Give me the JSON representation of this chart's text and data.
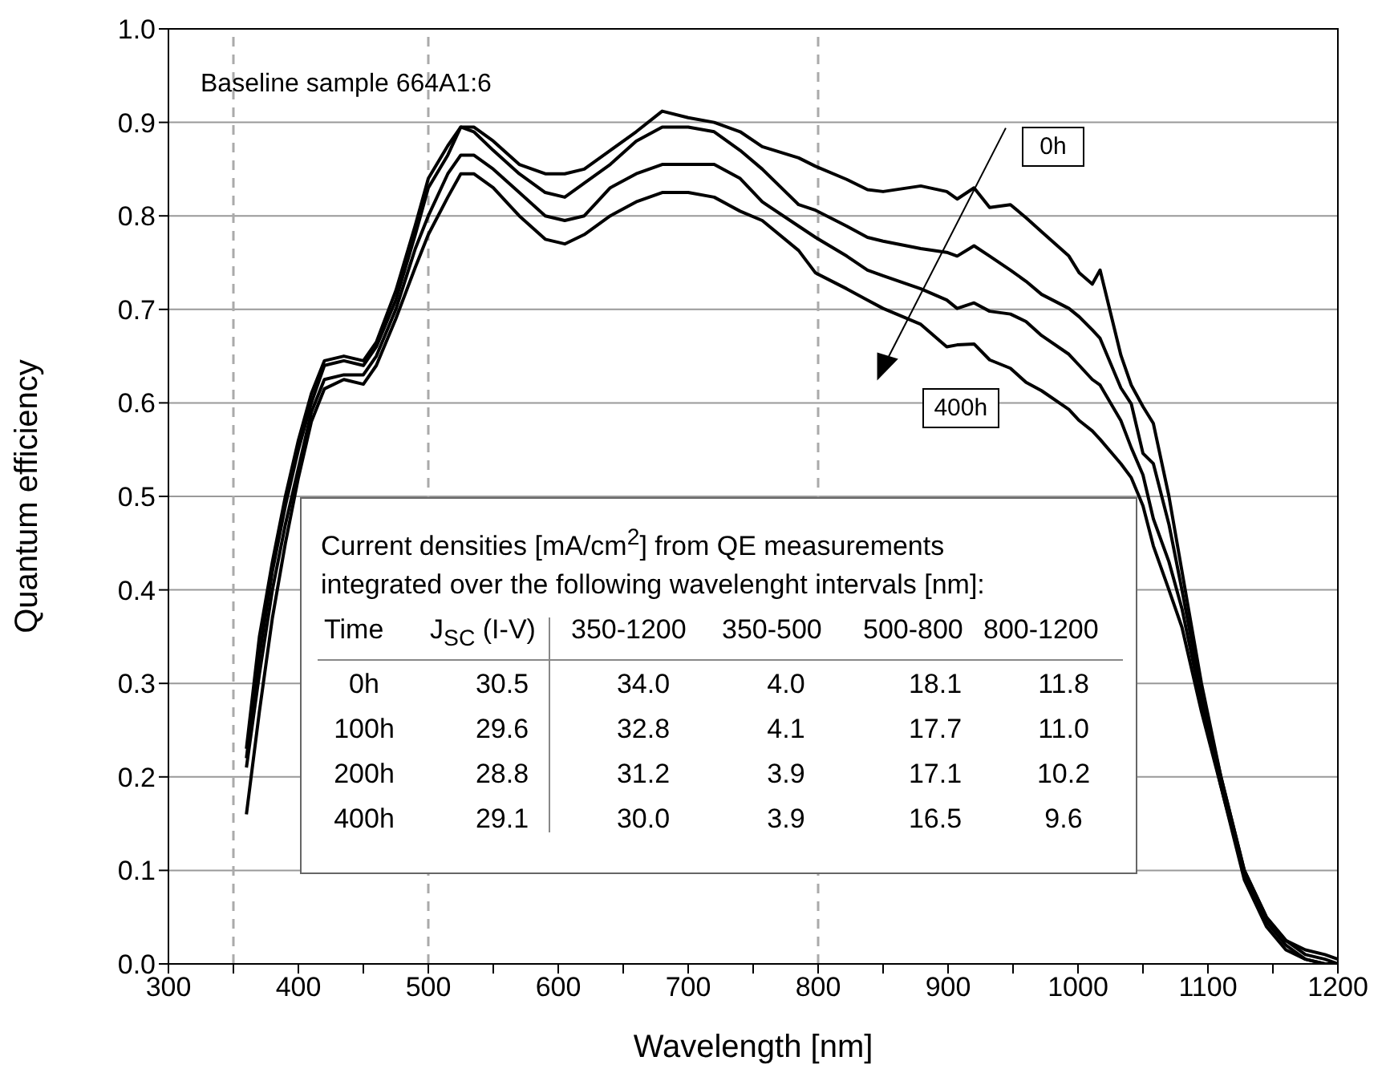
{
  "chart_data": {
    "type": "line",
    "xlabel": "Wavelength [nm]",
    "ylabel": "Quantum efficiency",
    "x": [
      360,
      370,
      380,
      390,
      400,
      410,
      420,
      435,
      450,
      460,
      475,
      490,
      500,
      515,
      525,
      535,
      550,
      570,
      590,
      605,
      620,
      640,
      660,
      680,
      700,
      720,
      740,
      757,
      785,
      798,
      822,
      838,
      850,
      879,
      899,
      907,
      920,
      932,
      948,
      960,
      972,
      993,
      1001,
      1011,
      1017,
      1033,
      1041,
      1050,
      1058,
      1070,
      1080,
      1095,
      1110,
      1128,
      1145,
      1160,
      1175,
      1190,
      1200
    ],
    "series": [
      {
        "color": "#000000",
        "values": [
          0.23,
          0.35,
          0.43,
          0.5,
          0.56,
          0.61,
          0.645,
          0.65,
          0.645,
          0.665,
          0.72,
          0.79,
          0.84,
          0.875,
          0.895,
          0.895,
          0.88,
          0.855,
          0.845,
          0.845,
          0.85,
          0.87,
          0.89,
          0.912,
          0.905,
          0.9,
          0.89,
          0.874,
          0.862,
          0.853,
          0.839,
          0.828,
          0.826,
          0.832,
          0.826,
          0.818,
          0.83,
          0.809,
          0.812,
          0.798,
          0.783,
          0.757,
          0.739,
          0.727,
          0.742,
          0.651,
          0.619,
          0.596,
          0.578,
          0.5,
          0.42,
          0.3,
          0.2,
          0.1,
          0.05,
          0.025,
          0.015,
          0.01,
          0.005
        ]
      },
      {
        "color": "#000000",
        "values": [
          0.22,
          0.33,
          0.42,
          0.49,
          0.55,
          0.6,
          0.64,
          0.645,
          0.64,
          0.66,
          0.71,
          0.78,
          0.83,
          0.865,
          0.895,
          0.89,
          0.87,
          0.845,
          0.825,
          0.82,
          0.835,
          0.855,
          0.88,
          0.895,
          0.895,
          0.89,
          0.87,
          0.85,
          0.812,
          0.806,
          0.789,
          0.777,
          0.773,
          0.765,
          0.761,
          0.757,
          0.768,
          0.757,
          0.742,
          0.73,
          0.716,
          0.701,
          0.692,
          0.678,
          0.669,
          0.616,
          0.599,
          0.546,
          0.535,
          0.47,
          0.4,
          0.29,
          0.2,
          0.1,
          0.05,
          0.025,
          0.01,
          0.005,
          0
        ]
      },
      {
        "color": "#000000",
        "values": [
          0.21,
          0.31,
          0.4,
          0.47,
          0.53,
          0.59,
          0.625,
          0.63,
          0.63,
          0.65,
          0.7,
          0.765,
          0.8,
          0.845,
          0.865,
          0.865,
          0.85,
          0.825,
          0.8,
          0.795,
          0.8,
          0.83,
          0.845,
          0.855,
          0.855,
          0.855,
          0.84,
          0.815,
          0.789,
          0.777,
          0.757,
          0.742,
          0.736,
          0.722,
          0.71,
          0.701,
          0.707,
          0.698,
          0.695,
          0.687,
          0.672,
          0.652,
          0.64,
          0.625,
          0.619,
          0.581,
          0.552,
          0.523,
          0.476,
          0.43,
          0.38,
          0.28,
          0.19,
          0.095,
          0.045,
          0.02,
          0.005,
          0,
          0
        ]
      },
      {
        "color": "#000000",
        "values": [
          0.16,
          0.27,
          0.37,
          0.45,
          0.52,
          0.58,
          0.615,
          0.625,
          0.62,
          0.64,
          0.69,
          0.745,
          0.78,
          0.82,
          0.845,
          0.845,
          0.83,
          0.8,
          0.775,
          0.77,
          0.78,
          0.8,
          0.815,
          0.825,
          0.825,
          0.82,
          0.805,
          0.795,
          0.763,
          0.739,
          0.722,
          0.71,
          0.701,
          0.684,
          0.66,
          0.662,
          0.663,
          0.646,
          0.637,
          0.622,
          0.613,
          0.593,
          0.581,
          0.57,
          0.561,
          0.535,
          0.52,
          0.49,
          0.447,
          0.4,
          0.36,
          0.27,
          0.19,
          0.09,
          0.04,
          0.015,
          0.005,
          0,
          0
        ]
      }
    ],
    "xlim": [
      300,
      1200
    ],
    "xticks": [
      300,
      {
        "value": 350,
        "label": null
      },
      400,
      {
        "value": 450,
        "label": null
      },
      500,
      {
        "value": 550,
        "label": null
      },
      600,
      {
        "value": 650,
        "label": null
      },
      700,
      {
        "value": 750,
        "label": null
      },
      800,
      {
        "value": 850,
        "label": null
      },
      900,
      {
        "value": 950,
        "label": null
      },
      1000,
      {
        "value": 1050,
        "label": null
      },
      1100,
      {
        "value": 1150,
        "label": null
      },
      1200
    ],
    "ylim": [
      0,
      1
    ],
    "yticks": [
      {
        "value": 0,
        "label": "0.0"
      },
      0.1,
      0.2,
      0.3,
      0.4,
      0.5,
      0.6,
      0.7,
      0.8,
      0.9,
      {
        "value": 1,
        "label": "1.0"
      }
    ],
    "grid": "y",
    "legend": false,
    "marker": "none",
    "line_style": "solid",
    "ref_lines": [
      {
        "axis": "x",
        "value": 350,
        "color": "#aaaaaa",
        "line_style": "dashed"
      },
      {
        "axis": "x",
        "value": 500,
        "color": "#aaaaaa",
        "line_style": "dashed"
      },
      {
        "axis": "x",
        "value": 800,
        "color": "#aaaaaa",
        "line_style": "dashed"
      }
    ],
    "annotations": [
      "Baseline sample 664A1:6",
      "0h",
      "400h",
      "Current densities [mA/cm$^{2}$] from QE measurements",
      "integrated over the following wavelenght intervals [nm]:",
      "Time",
      "J$_{SC}$ (I-V)",
      "350-1200",
      "350-500",
      "500-800",
      "800-1200",
      "0h",
      "30.5",
      "34.0",
      "4.0",
      "18.1",
      "11.8",
      "100h",
      "29.6",
      "32.8",
      "4.1",
      "17.7",
      "11.0",
      "200h",
      "28.8",
      "31.2",
      "3.9",
      "17.1",
      "10.2",
      "400h",
      "29.1",
      "30.0",
      "3.9",
      "16.5",
      "9.6"
    ]
  }
}
